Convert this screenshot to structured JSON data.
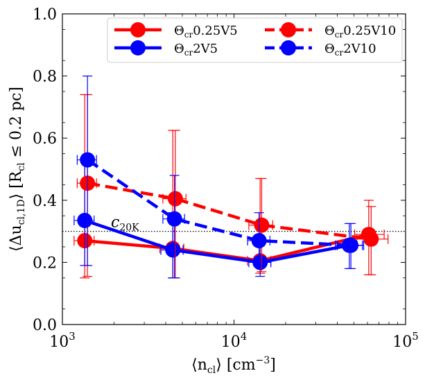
{
  "chart_data": {
    "type": "line",
    "x_scale": "log",
    "xlim": [
      1000,
      100000
    ],
    "ylim": [
      0.0,
      1.0
    ],
    "xlabel": {
      "pre": "⟨n",
      "sub": "cl",
      "post": "⟩ [cm",
      "sup": "−3",
      "close": "]"
    },
    "ylabel": {
      "pre": "⟨Δu",
      "sub": "cl,1D",
      "mid": "⟩ [R",
      "sub2": "cl",
      "post": " ≤ 0.2 pc]"
    },
    "x_ticks": [
      {
        "value": 1000,
        "base": "10",
        "exp": "3"
      },
      {
        "value": 10000,
        "base": "10",
        "exp": "4"
      },
      {
        "value": 100000,
        "base": "10",
        "exp": "5"
      }
    ],
    "y_ticks": [
      {
        "value": 0.0,
        "label": "0.0"
      },
      {
        "value": 0.2,
        "label": "0.2"
      },
      {
        "value": 0.4,
        "label": "0.4"
      },
      {
        "value": 0.6,
        "label": "0.6"
      },
      {
        "value": 0.8,
        "label": "0.8"
      },
      {
        "value": 1.0,
        "label": "1.0"
      }
    ],
    "reference_line": {
      "y": 0.3,
      "label_main": "c",
      "label_sub": "20K",
      "style": "dotted",
      "color": "#000000"
    },
    "legend_position": "top-right",
    "series": [
      {
        "name_symbol": "Θ",
        "name_sub": "cr",
        "name_rest": "0.25V5",
        "color": "#ff0000",
        "dashed": false,
        "x": [
          1350,
          4400,
          14200,
          61000
        ],
        "y": [
          0.27,
          0.245,
          0.205,
          0.29
        ],
        "x_err_low": [
          180,
          700,
          2200,
          10500
        ],
        "x_err_high": [
          180,
          700,
          2200,
          14000
        ],
        "y_err_low": [
          0.12,
          0.095,
          0.04,
          0.13
        ],
        "y_err_high": [
          0.47,
          0.38,
          0.265,
          0.11
        ]
      },
      {
        "name_symbol": "Θ",
        "name_sub": "cr",
        "name_rest": "2V5",
        "color": "#0000ff",
        "dashed": false,
        "x": [
          1350,
          4400,
          14200,
          47000
        ],
        "y": [
          0.335,
          0.24,
          0.2,
          0.255
        ],
        "x_err_low": [
          180,
          650,
          2000,
          8000
        ],
        "x_err_high": [
          180,
          650,
          2200,
          9000
        ],
        "y_err_low": [
          0.145,
          0.09,
          0.045,
          0.075
        ],
        "y_err_high": [
          0.2,
          0.12,
          0.08,
          0.07
        ]
      },
      {
        "name_symbol": "Θ",
        "name_sub": "cr",
        "name_rest": "0.25V10",
        "color": "#ff0000",
        "dashed": true,
        "x": [
          1400,
          4550,
          14500,
          63000
        ],
        "y": [
          0.455,
          0.405,
          0.32,
          0.275
        ],
        "x_err_low": [
          180,
          700,
          2300,
          11000
        ],
        "x_err_high": [
          180,
          700,
          2300,
          16000
        ],
        "y_err_low": [
          0.3,
          0.255,
          0.15,
          0.115
        ],
        "y_err_high": [
          0.285,
          0.22,
          0.15,
          0.105
        ]
      },
      {
        "name_symbol": "Θ",
        "name_sub": "cr",
        "name_rest": "2V10",
        "color": "#0000ff",
        "dashed": true,
        "x": [
          1400,
          4500,
          14000,
          48000
        ],
        "y": [
          0.53,
          0.34,
          0.27,
          0.255
        ],
        "x_err_low": [
          180,
          650,
          2000,
          8000
        ],
        "x_err_high": [
          180,
          650,
          2200,
          9000
        ],
        "y_err_low": [
          0.34,
          0.19,
          0.08,
          0.075
        ],
        "y_err_high": [
          0.27,
          0.14,
          0.09,
          0.07
        ]
      }
    ]
  }
}
